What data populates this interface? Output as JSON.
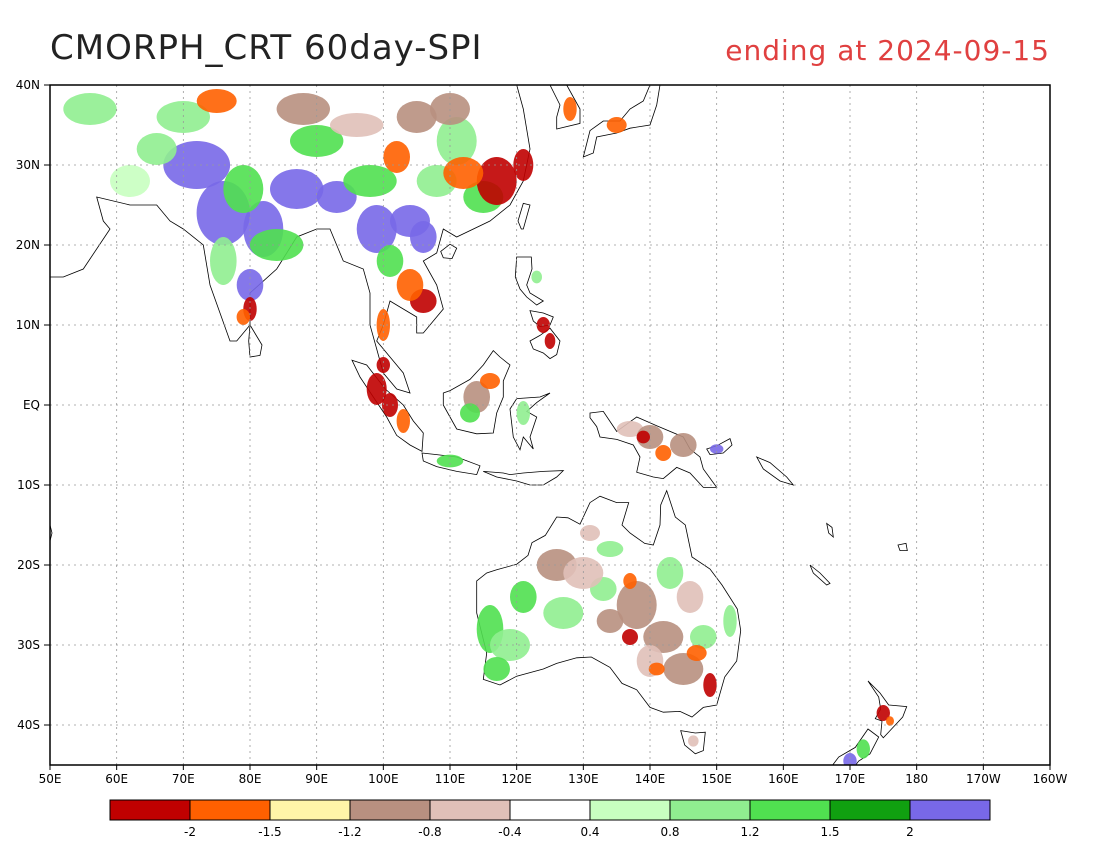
{
  "title": "CMORPH_CRT 60day-SPI",
  "subtitle": "ending at 2024-09-15",
  "lat_labels": [
    {
      "text": "40N",
      "lat": 40
    },
    {
      "text": "30N",
      "lat": 30
    },
    {
      "text": "20N",
      "lat": 20
    },
    {
      "text": "10N",
      "lat": 10
    },
    {
      "text": "EQ",
      "lat": 0
    },
    {
      "text": "10S",
      "lat": -10
    },
    {
      "text": "20S",
      "lat": -20
    },
    {
      "text": "30S",
      "lat": -30
    },
    {
      "text": "40S",
      "lat": -40
    }
  ],
  "lon_labels": [
    {
      "text": "50E",
      "lon": 50
    },
    {
      "text": "60E",
      "lon": 60
    },
    {
      "text": "70E",
      "lon": 70
    },
    {
      "text": "80E",
      "lon": 80
    },
    {
      "text": "90E",
      "lon": 90
    },
    {
      "text": "100E",
      "lon": 100
    },
    {
      "text": "110E",
      "lon": 110
    },
    {
      "text": "120E",
      "lon": 120
    },
    {
      "text": "130E",
      "lon": 130
    },
    {
      "text": "140E",
      "lon": 140
    },
    {
      "text": "150E",
      "lon": 150
    },
    {
      "text": "160E",
      "lon": 160
    },
    {
      "text": "170E",
      "lon": 170
    },
    {
      "text": "180",
      "lon": 180
    },
    {
      "text": "170W",
      "lon": 190
    },
    {
      "text": "160W",
      "lon": 200
    }
  ],
  "map_extent": {
    "lon_min": 50,
    "lon_max": 200,
    "lat_min": -45,
    "lat_max": 40
  },
  "colorbar": {
    "colors": [
      "#c00000",
      "#ff6000",
      "#fff5a8",
      "#b89080",
      "#e0c0b8",
      "#ffffff",
      "#c8ffc0",
      "#90ee90",
      "#50e050",
      "#10a010",
      "#7868e8"
    ],
    "labels": [
      "-2",
      "-1.5",
      "-1.2",
      "-0.8",
      "-0.4",
      "0.4",
      "0.8",
      "1.2",
      "1.5",
      "2"
    ]
  },
  "palette": {
    "ocean": "#ffffff",
    "land_normal": "#ffffff",
    "coast": "#000000",
    "grid": "#999999"
  }
}
